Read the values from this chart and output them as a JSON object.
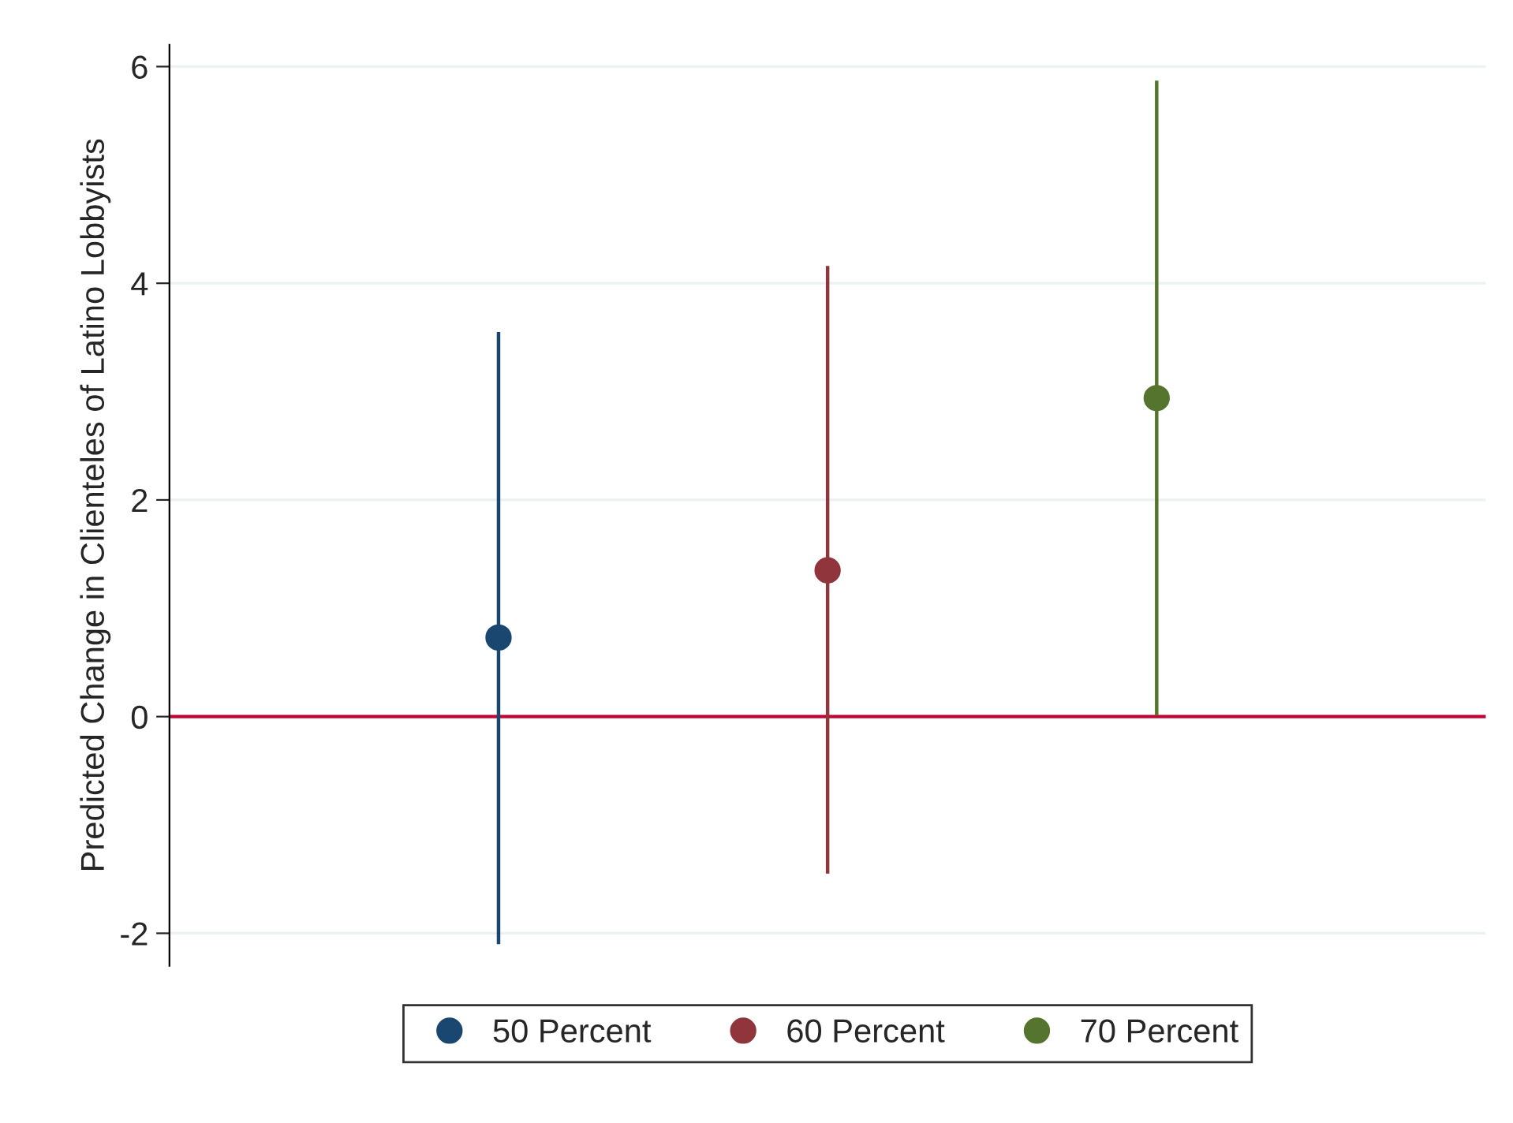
{
  "chart_data": {
    "type": "scatter",
    "ylabel": "Predicted Change in Clienteles of Latino Lobbyists",
    "categories": [
      null,
      null,
      null
    ],
    "series": [
      {
        "name": "50 Percent",
        "color": "#1a476f",
        "values": [
          0.73,
          null,
          null
        ],
        "errors": [
          [
            -2.1,
            3.55
          ],
          null,
          null
        ]
      },
      {
        "name": "60 Percent",
        "color": "#90353b",
        "values": [
          null,
          1.35,
          null
        ],
        "errors": [
          null,
          [
            -1.45,
            4.16
          ],
          null
        ]
      },
      {
        "name": "70 Percent",
        "color": "#55752f",
        "values": [
          null,
          null,
          2.94
        ],
        "errors": [
          null,
          null,
          [
            0.01,
            5.87
          ]
        ]
      }
    ],
    "ylim": [
      -2.3,
      6.2
    ],
    "yticks": [
      -2,
      0,
      2,
      4,
      6
    ],
    "grid": "y",
    "legend": "bottom",
    "marker": "circle",
    "tick_labels": "y",
    "ref_lines": [
      {
        "axis": "y",
        "value": 0,
        "color": "#c10534"
      }
    ]
  }
}
